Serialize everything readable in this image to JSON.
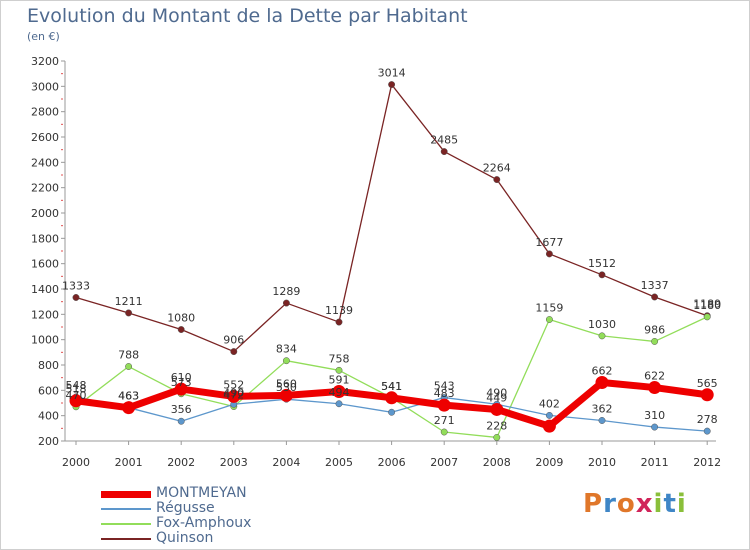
{
  "header": {
    "title": "Evolution du Montant de la Dette par Habitant",
    "subtitle": "(en €)"
  },
  "logo": {
    "text": "Proxiti",
    "colors": [
      "#e0772a",
      "#3f86c6",
      "#e0772a",
      "#d1245a",
      "#8abf3a",
      "#3f86c6",
      "#8abf3a"
    ]
  },
  "chart_data": {
    "type": "line",
    "title": "Evolution du Montant de la Dette par Habitant",
    "subtitle": "(en €)",
    "xlabel": "",
    "ylabel": "",
    "categories": [
      "2000",
      "2001",
      "2002",
      "2003",
      "2004",
      "2005",
      "2006",
      "2007",
      "2008",
      "2009",
      "2010",
      "2011",
      "2012"
    ],
    "ylim": [
      200,
      3200
    ],
    "yticks": [
      200,
      400,
      600,
      800,
      1000,
      1200,
      1400,
      1600,
      1800,
      2000,
      2200,
      2400,
      2600,
      2800,
      3000,
      3200
    ],
    "grid": false,
    "legend_position": "bottom-left",
    "series": [
      {
        "name": "MONTMEYAN",
        "color": "#ee0000",
        "values": [
          518,
          463,
          610,
          552,
          560,
          591,
          541,
          483,
          449,
          317,
          662,
          622,
          565
        ],
        "labels": [
          "518",
          "463",
          "610",
          "552",
          "560",
          "591",
          "541",
          "483",
          "449",
          "",
          "662",
          "622",
          "565"
        ]
      },
      {
        "name": "Régusse",
        "color": "#5d97cc",
        "values": [
          548,
          463,
          356,
          490,
          530,
          494,
          427,
          543,
          490,
          402,
          362,
          310,
          278
        ],
        "labels": [
          "548",
          "463",
          "356",
          "490",
          "530",
          "494",
          "",
          "543",
          "490",
          "402",
          "362",
          "310",
          "278"
        ]
      },
      {
        "name": "Fox-Amphoux",
        "color": "#92dd5a",
        "values": [
          470,
          788,
          573,
          472,
          834,
          758,
          541,
          271,
          228,
          1159,
          1030,
          986,
          1180
        ],
        "labels": [
          "470",
          "788",
          "573",
          "472",
          "834",
          "758",
          "541",
          "271",
          "228",
          "1159",
          "1030",
          "986",
          "1180"
        ]
      },
      {
        "name": "Quinson",
        "color": "#7a2424",
        "values": [
          1333,
          1211,
          1080,
          906,
          1289,
          1139,
          3014,
          2485,
          2264,
          1677,
          1512,
          1337,
          1189
        ],
        "labels": [
          "1333",
          "1211",
          "1080",
          "906",
          "1289",
          "1139",
          "3014",
          "2485",
          "2264",
          "1677",
          "1512",
          "1337",
          "1189"
        ]
      }
    ]
  }
}
